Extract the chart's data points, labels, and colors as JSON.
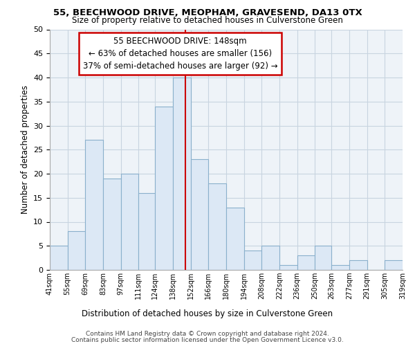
{
  "title": "55, BEECHWOOD DRIVE, MEOPHAM, GRAVESEND, DA13 0TX",
  "subtitle": "Size of property relative to detached houses in Culverstone Green",
  "xlabel": "Distribution of detached houses by size in Culverstone Green",
  "ylabel": "Number of detached properties",
  "bin_edges": [
    41,
    55,
    69,
    83,
    97,
    111,
    124,
    138,
    152,
    166,
    180,
    194,
    208,
    222,
    236,
    250,
    263,
    277,
    291,
    305,
    319
  ],
  "bin_heights": [
    5,
    8,
    27,
    19,
    20,
    16,
    34,
    40,
    23,
    18,
    13,
    4,
    5,
    1,
    3,
    5,
    1,
    2,
    0,
    2
  ],
  "bar_color": "#dce8f5",
  "bar_edge_color": "#8ab0cc",
  "property_line_x": 148,
  "property_line_color": "#cc0000",
  "annotation_title": "55 BEECHWOOD DRIVE: 148sqm",
  "annotation_line1": "← 63% of detached houses are smaller (156)",
  "annotation_line2": "37% of semi-detached houses are larger (92) →",
  "annotation_box_color": "#ffffff",
  "annotation_box_edge": "#cc0000",
  "ylim": [
    0,
    50
  ],
  "yticks": [
    0,
    5,
    10,
    15,
    20,
    25,
    30,
    35,
    40,
    45,
    50
  ],
  "tick_labels": [
    "41sqm",
    "55sqm",
    "69sqm",
    "83sqm",
    "97sqm",
    "111sqm",
    "124sqm",
    "138sqm",
    "152sqm",
    "166sqm",
    "180sqm",
    "194sqm",
    "208sqm",
    "222sqm",
    "236sqm",
    "250sqm",
    "263sqm",
    "277sqm",
    "291sqm",
    "305sqm",
    "319sqm"
  ],
  "footer1": "Contains HM Land Registry data © Crown copyright and database right 2024.",
  "footer2": "Contains public sector information licensed under the Open Government Licence v3.0.",
  "background_color": "#ffffff",
  "plot_bg_color": "#eef3f8",
  "grid_color": "#c8d4e0"
}
